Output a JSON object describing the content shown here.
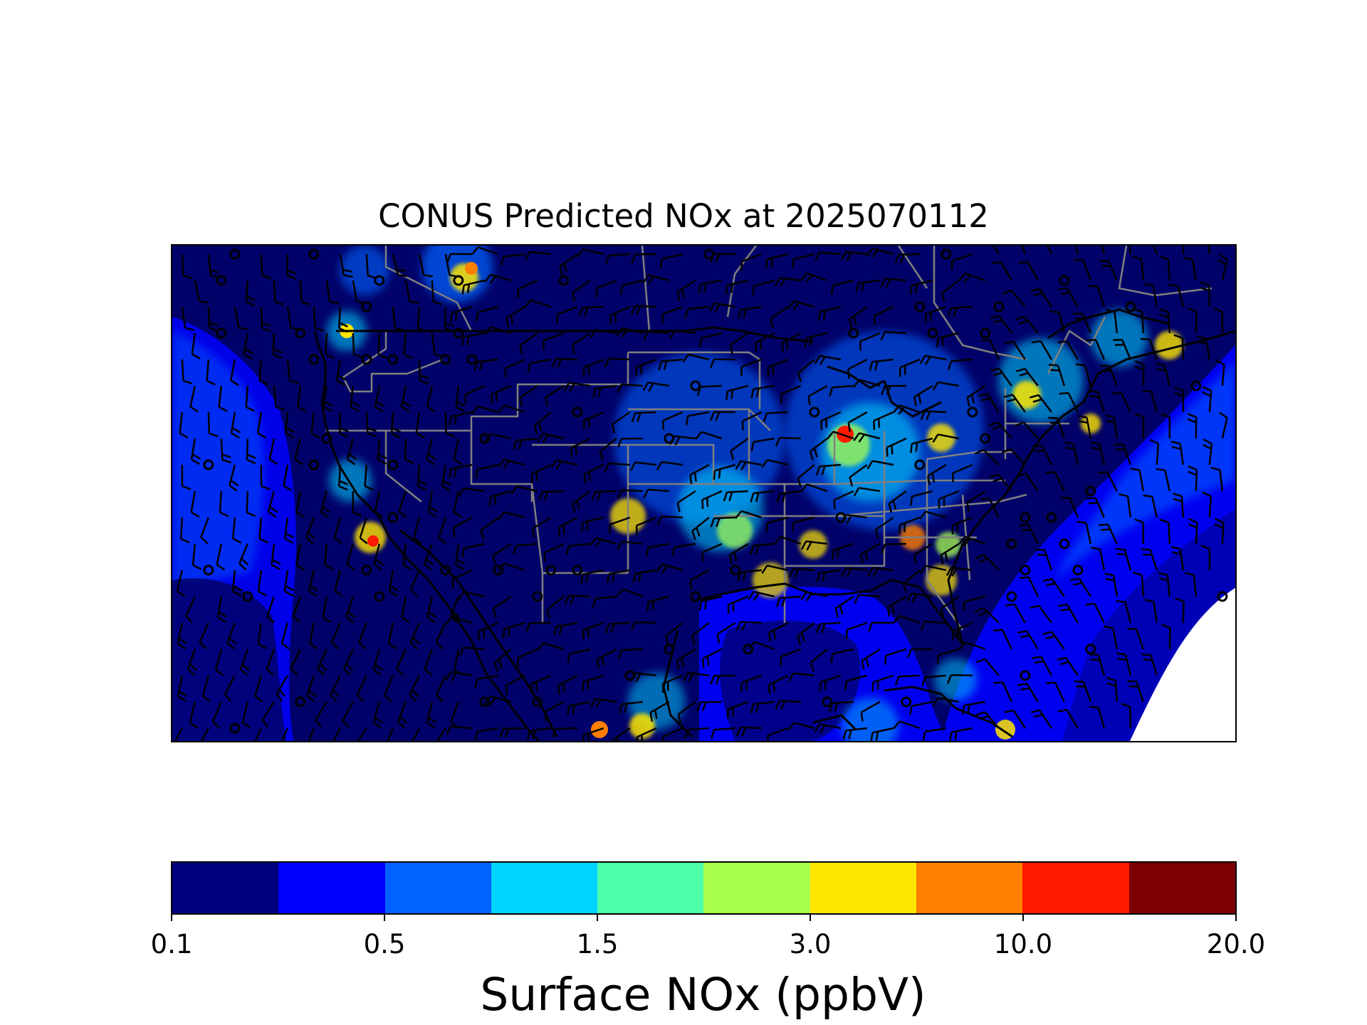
{
  "title": "CONUS Predicted NOx at 2025070112",
  "colorbar": {
    "label": "Surface NOx (ppbV)",
    "colors": [
      "#00007f",
      "#0000ff",
      "#0063ff",
      "#00d5ff",
      "#4dffa9",
      "#a9ff4d",
      "#ffe600",
      "#ff7f00",
      "#ff1a00",
      "#7f0000"
    ],
    "tick_labels": [
      "0.1",
      "0.5",
      "1.5",
      "3.0",
      "10.0",
      "20.0"
    ]
  },
  "map": {
    "projection": "Lambert conformal (CONUS domain)",
    "field": "Surface NOx",
    "overlays": [
      "country-borders",
      "state-borders",
      "coastlines",
      "wind-barbs",
      "calm-wind-circles"
    ],
    "colors": {
      "background": "#010269",
      "ocean_mid": "#0000f0",
      "coast_blue": "#0063ff",
      "boundary_gray": "#808080",
      "coast_black": "#000000",
      "missing": "#ffffff"
    }
  }
}
